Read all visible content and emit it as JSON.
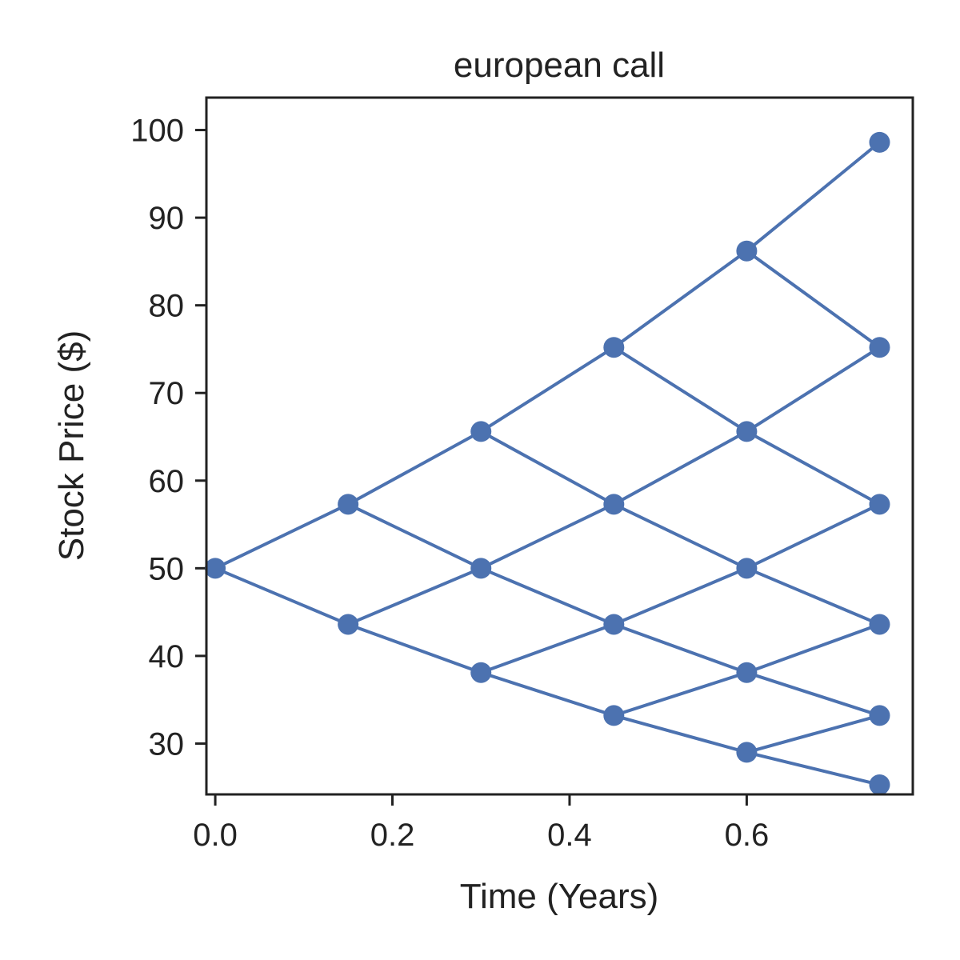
{
  "chart_data": {
    "type": "line",
    "title": "european call",
    "xlabel": "Time (Years)",
    "ylabel": "Stock Price ($)",
    "xlim": [
      -0.01,
      0.7875
    ],
    "ylim": [
      24.2,
      103.7
    ],
    "x_ticks": [
      0.0,
      0.2,
      0.4,
      0.6
    ],
    "x_tick_labels": [
      "0.0",
      "0.2",
      "0.4",
      "0.6"
    ],
    "y_ticks": [
      30,
      40,
      50,
      60,
      70,
      80,
      90,
      100
    ],
    "y_tick_labels": [
      "30",
      "40",
      "50",
      "60",
      "70",
      "80",
      "90",
      "100"
    ],
    "grid": false,
    "color": "#4c72b0",
    "nodes": [
      {
        "x": 0.0,
        "y": 50.0
      },
      {
        "x": 0.15,
        "y": 57.3
      },
      {
        "x": 0.15,
        "y": 43.6
      },
      {
        "x": 0.3,
        "y": 65.6
      },
      {
        "x": 0.3,
        "y": 50.0
      },
      {
        "x": 0.3,
        "y": 38.1
      },
      {
        "x": 0.45,
        "y": 75.2
      },
      {
        "x": 0.45,
        "y": 57.3
      },
      {
        "x": 0.45,
        "y": 43.6
      },
      {
        "x": 0.45,
        "y": 33.2
      },
      {
        "x": 0.6,
        "y": 86.2
      },
      {
        "x": 0.6,
        "y": 65.6
      },
      {
        "x": 0.6,
        "y": 50.0
      },
      {
        "x": 0.6,
        "y": 38.1
      },
      {
        "x": 0.6,
        "y": 29.0
      },
      {
        "x": 0.75,
        "y": 98.6
      },
      {
        "x": 0.75,
        "y": 75.2
      },
      {
        "x": 0.75,
        "y": 57.3
      },
      {
        "x": 0.75,
        "y": 43.6
      },
      {
        "x": 0.75,
        "y": 33.2
      },
      {
        "x": 0.75,
        "y": 25.3
      }
    ],
    "edges": [
      [
        0,
        1
      ],
      [
        0,
        2
      ],
      [
        1,
        3
      ],
      [
        1,
        4
      ],
      [
        2,
        4
      ],
      [
        2,
        5
      ],
      [
        3,
        6
      ],
      [
        3,
        7
      ],
      [
        4,
        7
      ],
      [
        4,
        8
      ],
      [
        5,
        8
      ],
      [
        5,
        9
      ],
      [
        6,
        10
      ],
      [
        6,
        11
      ],
      [
        7,
        11
      ],
      [
        7,
        12
      ],
      [
        8,
        12
      ],
      [
        8,
        13
      ],
      [
        9,
        13
      ],
      [
        9,
        14
      ],
      [
        10,
        15
      ],
      [
        10,
        16
      ],
      [
        11,
        16
      ],
      [
        11,
        17
      ],
      [
        12,
        17
      ],
      [
        12,
        18
      ],
      [
        13,
        18
      ],
      [
        13,
        19
      ],
      [
        14,
        19
      ],
      [
        14,
        20
      ]
    ]
  }
}
